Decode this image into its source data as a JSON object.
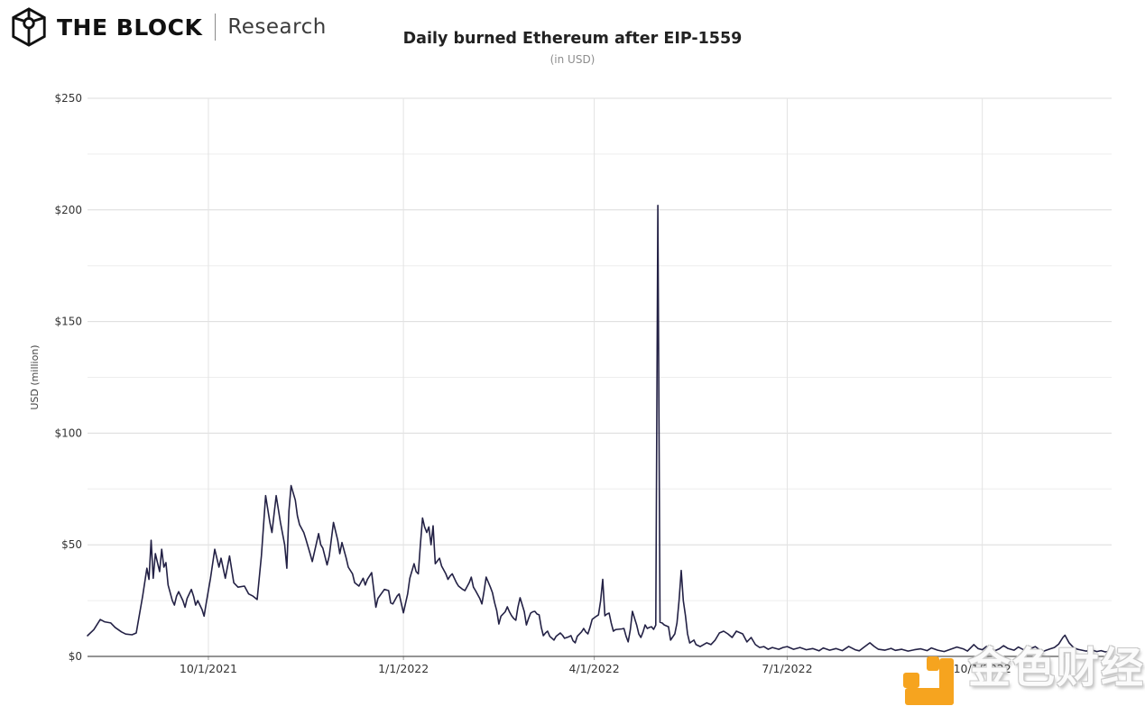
{
  "brand": {
    "name": "THE BLOCK",
    "sub": "Research"
  },
  "watermark": {
    "text": "金色财经",
    "logo_color": "#F6A41F"
  },
  "chart_data": {
    "type": "line",
    "title": "Daily burned Ethereum after EIP-1559",
    "subtitle": "(in USD)",
    "xlabel": "",
    "ylabel": "USD (million)",
    "ylim": [
      0,
      250
    ],
    "y_ticks": [
      {
        "v": 0,
        "label": "$0"
      },
      {
        "v": 50,
        "label": "$50"
      },
      {
        "v": 100,
        "label": "$100"
      },
      {
        "v": 150,
        "label": "$150"
      },
      {
        "v": 200,
        "label": "$200"
      },
      {
        "v": 250,
        "label": "$250"
      }
    ],
    "y_minor_step": 25,
    "x_start_date": "2021-08-05",
    "x_unit": "days since 2021-08-05",
    "x_domain_days": [
      0,
      483
    ],
    "x_ticks": [
      {
        "day": 57,
        "label": "10/1/2021"
      },
      {
        "day": 149,
        "label": "1/1/2022"
      },
      {
        "day": 239,
        "label": "4/1/2022"
      },
      {
        "day": 330,
        "label": "7/1/2022"
      },
      {
        "day": 422,
        "label": "10/1/2022"
      }
    ],
    "grid": true,
    "legend": "none",
    "line_color": "#232145",
    "series": [
      {
        "name": "Daily burned ETH (USD million)",
        "points": [
          [
            0,
            9.3
          ],
          [
            3,
            12
          ],
          [
            6,
            16.5
          ],
          [
            8,
            15.5
          ],
          [
            11,
            15
          ],
          [
            13,
            13
          ],
          [
            16,
            11
          ],
          [
            18,
            10
          ],
          [
            21,
            9.7
          ],
          [
            23,
            10.5
          ],
          [
            26,
            27
          ],
          [
            28,
            39.5
          ],
          [
            29,
            34.5
          ],
          [
            30,
            52
          ],
          [
            31,
            35
          ],
          [
            32,
            46
          ],
          [
            34,
            38
          ],
          [
            35,
            48
          ],
          [
            36,
            40
          ],
          [
            37,
            42
          ],
          [
            38,
            32
          ],
          [
            40,
            25
          ],
          [
            41,
            23
          ],
          [
            42,
            27
          ],
          [
            43,
            29
          ],
          [
            45,
            25
          ],
          [
            46,
            22
          ],
          [
            47,
            26
          ],
          [
            49,
            30
          ],
          [
            50,
            27
          ],
          [
            51,
            23
          ],
          [
            52,
            25
          ],
          [
            54,
            21
          ],
          [
            55,
            18
          ],
          [
            56,
            24
          ],
          [
            58,
            35
          ],
          [
            60,
            48
          ],
          [
            62,
            40
          ],
          [
            63,
            44
          ],
          [
            65,
            35
          ],
          [
            67,
            45
          ],
          [
            69,
            33
          ],
          [
            71,
            31
          ],
          [
            74,
            31.5
          ],
          [
            76,
            28
          ],
          [
            78,
            27
          ],
          [
            80,
            25.5
          ],
          [
            82,
            45
          ],
          [
            84,
            72
          ],
          [
            86,
            60
          ],
          [
            87,
            55.5
          ],
          [
            89,
            72
          ],
          [
            91,
            60
          ],
          [
            93,
            50
          ],
          [
            94,
            39.5
          ],
          [
            95,
            65
          ],
          [
            96,
            76.5
          ],
          [
            98,
            70
          ],
          [
            99,
            63
          ],
          [
            100,
            59
          ],
          [
            102,
            55.5
          ],
          [
            103,
            52.5
          ],
          [
            105,
            46
          ],
          [
            106,
            42.5
          ],
          [
            109,
            55
          ],
          [
            110,
            50
          ],
          [
            111,
            48.5
          ],
          [
            113,
            41
          ],
          [
            114,
            45
          ],
          [
            116,
            60
          ],
          [
            118,
            52
          ],
          [
            119,
            46
          ],
          [
            120,
            51
          ],
          [
            122,
            44
          ],
          [
            123,
            40
          ],
          [
            125,
            37
          ],
          [
            126,
            33
          ],
          [
            128,
            31.5
          ],
          [
            130,
            35
          ],
          [
            131,
            32
          ],
          [
            132,
            34.5
          ],
          [
            134,
            37.5
          ],
          [
            135,
            30
          ],
          [
            136,
            22
          ],
          [
            137,
            26
          ],
          [
            140,
            30
          ],
          [
            142,
            29.5
          ],
          [
            143,
            24
          ],
          [
            144,
            23.5
          ],
          [
            146,
            27
          ],
          [
            147,
            28
          ],
          [
            149,
            19.5
          ],
          [
            151,
            28
          ],
          [
            152,
            35
          ],
          [
            154,
            41.5
          ],
          [
            155,
            38
          ],
          [
            156,
            37
          ],
          [
            157,
            50
          ],
          [
            158,
            62
          ],
          [
            159,
            58
          ],
          [
            160,
            55.5
          ],
          [
            161,
            58
          ],
          [
            162,
            50
          ],
          [
            163,
            58.5
          ],
          [
            164,
            41.5
          ],
          [
            166,
            44
          ],
          [
            167,
            40.5
          ],
          [
            169,
            37
          ],
          [
            170,
            34.5
          ],
          [
            171,
            36
          ],
          [
            172,
            37
          ],
          [
            174,
            33
          ],
          [
            175,
            31.5
          ],
          [
            177,
            30
          ],
          [
            178,
            29.5
          ],
          [
            180,
            33
          ],
          [
            181,
            35.5
          ],
          [
            182,
            31
          ],
          [
            183,
            29.5
          ],
          [
            185,
            26
          ],
          [
            186,
            23.5
          ],
          [
            187,
            29
          ],
          [
            188,
            35.5
          ],
          [
            190,
            31
          ],
          [
            191,
            28.5
          ],
          [
            192,
            24
          ],
          [
            193,
            20.5
          ],
          [
            194,
            14.5
          ],
          [
            195,
            18
          ],
          [
            197,
            20
          ],
          [
            198,
            22.2
          ],
          [
            199,
            20
          ],
          [
            200,
            18.2
          ],
          [
            201,
            17
          ],
          [
            202,
            16.2
          ],
          [
            203,
            22
          ],
          [
            204,
            26.3
          ],
          [
            206,
            20
          ],
          [
            207,
            14.1
          ],
          [
            208,
            17
          ],
          [
            209,
            19.4
          ],
          [
            210,
            20
          ],
          [
            211,
            20.2
          ],
          [
            212,
            19
          ],
          [
            213,
            18.6
          ],
          [
            214,
            13
          ],
          [
            215,
            9.3
          ],
          [
            216,
            10.5
          ],
          [
            217,
            11.3
          ],
          [
            218,
            9
          ],
          [
            220,
            7.3
          ],
          [
            221,
            9
          ],
          [
            223,
            10.5
          ],
          [
            224,
            9.5
          ],
          [
            225,
            8.1
          ],
          [
            227,
            8.8
          ],
          [
            228,
            9.3
          ],
          [
            229,
            7
          ],
          [
            230,
            6.1
          ],
          [
            231,
            9
          ],
          [
            233,
            11
          ],
          [
            234,
            12.5
          ],
          [
            235,
            11
          ],
          [
            236,
            10.1
          ],
          [
            237,
            13
          ],
          [
            238,
            16.6
          ],
          [
            240,
            18
          ],
          [
            241,
            18.6
          ],
          [
            242,
            25
          ],
          [
            243,
            34.5
          ],
          [
            244,
            18.2
          ],
          [
            245,
            19
          ],
          [
            246,
            19.4
          ],
          [
            247,
            15
          ],
          [
            248,
            11.3
          ],
          [
            249,
            12
          ],
          [
            250,
            12.1
          ],
          [
            252,
            12.3
          ],
          [
            253,
            12.5
          ],
          [
            254,
            9
          ],
          [
            255,
            6.5
          ],
          [
            256,
            12
          ],
          [
            257,
            20.2
          ],
          [
            259,
            14.1
          ],
          [
            260,
            10
          ],
          [
            261,
            8.5
          ],
          [
            262,
            11
          ],
          [
            263,
            14.1
          ],
          [
            264,
            12.5
          ],
          [
            265,
            13
          ],
          [
            266,
            13.3
          ],
          [
            267,
            12.1
          ],
          [
            268,
            14
          ],
          [
            269,
            202
          ],
          [
            270,
            15.3
          ],
          [
            271,
            15
          ],
          [
            272,
            14.1
          ],
          [
            274,
            13.3
          ],
          [
            275,
            7.3
          ],
          [
            277,
            10.1
          ],
          [
            278,
            15
          ],
          [
            279,
            25
          ],
          [
            280,
            38.5
          ],
          [
            281,
            25
          ],
          [
            282,
            18.2
          ],
          [
            283,
            10.1
          ],
          [
            284,
            6
          ],
          [
            286,
            7.3
          ],
          [
            287,
            5.3
          ],
          [
            289,
            4.4
          ],
          [
            292,
            6.1
          ],
          [
            294,
            5.3
          ],
          [
            296,
            7.3
          ],
          [
            298,
            10.5
          ],
          [
            300,
            11.3
          ],
          [
            302,
            10.1
          ],
          [
            304,
            8.5
          ],
          [
            306,
            11.3
          ],
          [
            309,
            10.1
          ],
          [
            311,
            6.5
          ],
          [
            313,
            8.5
          ],
          [
            315,
            5.3
          ],
          [
            317,
            4
          ],
          [
            319,
            4.4
          ],
          [
            321,
            3.2
          ],
          [
            323,
            4
          ],
          [
            326,
            3.2
          ],
          [
            328,
            4
          ],
          [
            330,
            4.4
          ],
          [
            333,
            3.2
          ],
          [
            336,
            4
          ],
          [
            339,
            3
          ],
          [
            342,
            3.5
          ],
          [
            345,
            2.5
          ],
          [
            347,
            3.8
          ],
          [
            350,
            2.8
          ],
          [
            353,
            3.5
          ],
          [
            356,
            2.6
          ],
          [
            359,
            4.5
          ],
          [
            362,
            3
          ],
          [
            364,
            2.5
          ],
          [
            366,
            4
          ],
          [
            369,
            6.1
          ],
          [
            371,
            4.5
          ],
          [
            373,
            3.2
          ],
          [
            376,
            2.8
          ],
          [
            379,
            3.6
          ],
          [
            381,
            2.7
          ],
          [
            384,
            3.2
          ],
          [
            387,
            2.4
          ],
          [
            390,
            3
          ],
          [
            393,
            3.4
          ],
          [
            396,
            2.6
          ],
          [
            398,
            3.8
          ],
          [
            401,
            2.8
          ],
          [
            404,
            2.2
          ],
          [
            407,
            3.2
          ],
          [
            410,
            4.2
          ],
          [
            413,
            3.4
          ],
          [
            415,
            2.4
          ],
          [
            418,
            5.3
          ],
          [
            420,
            3.5
          ],
          [
            422,
            3
          ],
          [
            424,
            4.5
          ],
          [
            426,
            3.2
          ],
          [
            428,
            2.6
          ],
          [
            430,
            3.4
          ],
          [
            432,
            4.8
          ],
          [
            434,
            3.6
          ],
          [
            437,
            2.8
          ],
          [
            439,
            4.2
          ],
          [
            441,
            3.2
          ],
          [
            443,
            2.6
          ],
          [
            445,
            3.6
          ],
          [
            447,
            4.4
          ],
          [
            449,
            3
          ],
          [
            451,
            2.4
          ],
          [
            454,
            3.4
          ],
          [
            456,
            4
          ],
          [
            458,
            5.5
          ],
          [
            460,
            8.5
          ],
          [
            461,
            9.5
          ],
          [
            463,
            6
          ],
          [
            465,
            4
          ],
          [
            467,
            3.2
          ],
          [
            469,
            2.8
          ],
          [
            471,
            2.4
          ],
          [
            474,
            2.8
          ],
          [
            476,
            2.2
          ],
          [
            478,
            2.6
          ],
          [
            480,
            2
          ],
          [
            482,
            2.4
          ]
        ]
      }
    ],
    "annotations": [
      "peak spike ~$202M around 2022-05-01"
    ]
  }
}
